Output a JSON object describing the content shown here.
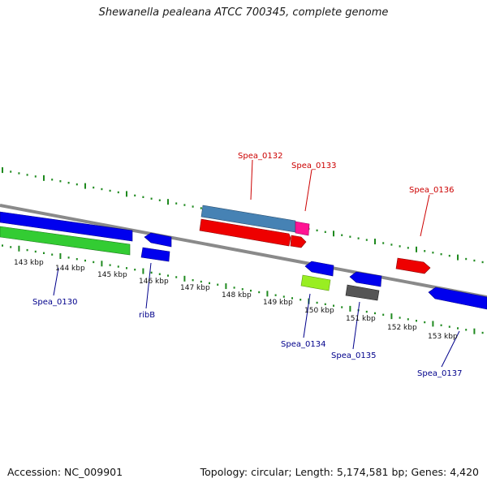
{
  "title": "Shewanella pealeana ATCC 700345, complete genome",
  "footer": {
    "accession": "Accession: NC_009901",
    "summary": "Topology: circular; Length: 5,174,581 bp; Genes: 4,420"
  },
  "colors": {
    "backbone": "#8a8a8a",
    "tick": "#1f8a1f",
    "label_top": "#cc0000",
    "label_bottom": "#00008b",
    "cds_blue": "#0000ee",
    "cds_green": "#33cc33",
    "cds_steel": "#4682b4",
    "cds_red": "#ee0000",
    "cds_pink": "#ff1493",
    "cds_lime": "#99ee22",
    "cds_gray": "#555555"
  },
  "scale_labels": [
    "143 kbp",
    "144 kbp",
    "145 kbp",
    "146 kbp",
    "147 kbp",
    "148 kbp",
    "149 kbp",
    "150 kbp",
    "151 kbp",
    "152 kbp",
    "153 kbp"
  ],
  "gene_labels_top": [
    "Spea_0132",
    "Spea_0133",
    "Spea_0136"
  ],
  "gene_labels_bottom": [
    "Spea_0130",
    "ribB",
    "Spea_0134",
    "Spea_0135",
    "Spea_0137"
  ]
}
